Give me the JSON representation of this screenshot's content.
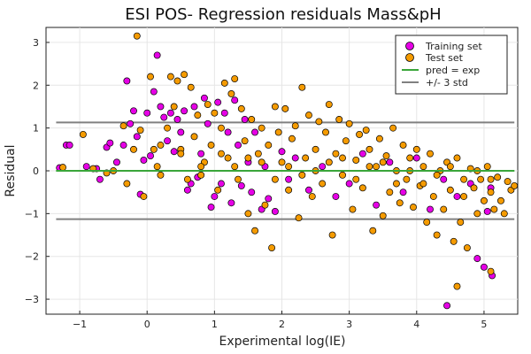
{
  "chart_data": {
    "type": "scatter",
    "title": "ESI POS- Regression residuals Mass&pH",
    "xlabel": "Experimental log(IE)",
    "ylabel": "Residual",
    "xlim": [
      -1.5,
      5.5
    ],
    "ylim": [
      -3.35,
      3.35
    ],
    "xticks": [
      "−1",
      "0",
      "1",
      "2",
      "3",
      "4",
      "5"
    ],
    "yticks": [
      "−3",
      "−2",
      "−1",
      "0",
      "1",
      "2",
      "3"
    ],
    "grid": true,
    "legend_position": "top-right",
    "series": [
      {
        "name": "Training set",
        "color": "#e600e6",
        "marker": "circle",
        "points": [
          [
            -1.3,
            0.07
          ],
          [
            -1.2,
            0.6
          ],
          [
            -1.15,
            0.6
          ],
          [
            -0.9,
            0.1
          ],
          [
            -0.75,
            0.05
          ],
          [
            -0.7,
            -0.2
          ],
          [
            -0.6,
            0.55
          ],
          [
            -0.55,
            0.65
          ],
          [
            -0.45,
            0.2
          ],
          [
            -0.35,
            0.6
          ],
          [
            -0.3,
            2.1
          ],
          [
            -0.25,
            1.1
          ],
          [
            -0.2,
            1.4
          ],
          [
            -0.15,
            0.8
          ],
          [
            -0.1,
            -0.55
          ],
          [
            -0.05,
            0.25
          ],
          [
            0.0,
            1.35
          ],
          [
            0.05,
            0.35
          ],
          [
            0.1,
            1.85
          ],
          [
            0.15,
            2.7
          ],
          [
            0.2,
            1.5
          ],
          [
            0.25,
            1.25
          ],
          [
            0.3,
            0.7
          ],
          [
            0.35,
            1.35
          ],
          [
            0.4,
            0.45
          ],
          [
            0.45,
            1.2
          ],
          [
            0.5,
            0.9
          ],
          [
            0.55,
            1.4
          ],
          [
            0.6,
            -0.45
          ],
          [
            0.65,
            -0.3
          ],
          [
            0.7,
            1.5
          ],
          [
            0.75,
            -0.15
          ],
          [
            0.8,
            0.4
          ],
          [
            0.85,
            1.7
          ],
          [
            0.9,
            1.1
          ],
          [
            0.95,
            -0.85
          ],
          [
            1.0,
            -0.6
          ],
          [
            1.05,
            1.6
          ],
          [
            1.1,
            -0.3
          ],
          [
            1.15,
            1.35
          ],
          [
            1.2,
            0.9
          ],
          [
            1.25,
            -0.75
          ],
          [
            1.3,
            1.65
          ],
          [
            1.35,
            0.6
          ],
          [
            1.4,
            -0.35
          ],
          [
            1.45,
            1.2
          ],
          [
            1.5,
            0.2
          ],
          [
            1.55,
            -0.5
          ],
          [
            1.6,
            0.9
          ],
          [
            1.7,
            -0.9
          ],
          [
            1.75,
            0.1
          ],
          [
            1.8,
            -0.65
          ],
          [
            1.9,
            -0.95
          ],
          [
            2.0,
            0.45
          ],
          [
            2.1,
            -0.2
          ],
          [
            2.2,
            0.3
          ],
          [
            2.4,
            -0.45
          ],
          [
            2.6,
            0.1
          ],
          [
            2.8,
            -0.6
          ],
          [
            3.0,
            -0.3
          ],
          [
            3.2,
            0.4
          ],
          [
            3.4,
            -0.8
          ],
          [
            3.6,
            0.2
          ],
          [
            3.8,
            -0.5
          ],
          [
            4.0,
            0.3
          ],
          [
            4.2,
            -0.9
          ],
          [
            4.4,
            -0.2
          ],
          [
            4.45,
            -3.15
          ],
          [
            4.6,
            -0.6
          ],
          [
            4.8,
            -0.3
          ],
          [
            4.9,
            -2.05
          ],
          [
            5.0,
            -2.25
          ],
          [
            5.05,
            -0.95
          ],
          [
            5.1,
            -0.4
          ],
          [
            5.12,
            -2.45
          ]
        ]
      },
      {
        "name": "Test set",
        "color": "#f59b00",
        "marker": "circle",
        "points": [
          [
            -1.25,
            0.08
          ],
          [
            -0.95,
            0.85
          ],
          [
            -0.8,
            0.05
          ],
          [
            -0.6,
            -0.05
          ],
          [
            -0.5,
            0.0
          ],
          [
            -0.35,
            1.05
          ],
          [
            -0.3,
            -0.3
          ],
          [
            -0.2,
            0.5
          ],
          [
            -0.15,
            3.15
          ],
          [
            -0.1,
            0.95
          ],
          [
            -0.05,
            -0.6
          ],
          [
            0.05,
            2.2
          ],
          [
            0.1,
            0.5
          ],
          [
            0.15,
            0.1
          ],
          [
            0.2,
            0.6
          ],
          [
            0.3,
            1.0
          ],
          [
            0.35,
            2.2
          ],
          [
            0.4,
            1.5
          ],
          [
            0.45,
            2.1
          ],
          [
            0.5,
            0.5
          ],
          [
            0.55,
            2.25
          ],
          [
            0.6,
            -0.2
          ],
          [
            0.65,
            1.95
          ],
          [
            0.7,
            0.8
          ],
          [
            0.75,
            1.3
          ],
          [
            0.8,
            -0.1
          ],
          [
            0.85,
            0.2
          ],
          [
            0.9,
            1.55
          ],
          [
            0.95,
            0.6
          ],
          [
            1.0,
            1.35
          ],
          [
            1.05,
            -0.45
          ],
          [
            1.1,
            1.0
          ],
          [
            1.15,
            2.05
          ],
          [
            1.2,
            0.3
          ],
          [
            1.25,
            1.8
          ],
          [
            1.3,
            2.15
          ],
          [
            1.35,
            -0.2
          ],
          [
            1.4,
            1.45
          ],
          [
            1.45,
            0.7
          ],
          [
            1.5,
            -1.0
          ],
          [
            1.55,
            1.2
          ],
          [
            1.6,
            -1.4
          ],
          [
            1.65,
            0.4
          ],
          [
            1.7,
            1.0
          ],
          [
            1.75,
            -0.8
          ],
          [
            1.8,
            0.6
          ],
          [
            1.85,
            -1.8
          ],
          [
            1.9,
            1.5
          ],
          [
            1.95,
            0.9
          ],
          [
            2.0,
            0.2
          ],
          [
            2.05,
            1.45
          ],
          [
            2.1,
            -0.45
          ],
          [
            2.15,
            0.75
          ],
          [
            2.2,
            1.05
          ],
          [
            2.25,
            -1.1
          ],
          [
            2.3,
            1.95
          ],
          [
            2.35,
            0.3
          ],
          [
            2.4,
            1.3
          ],
          [
            2.45,
            -0.6
          ],
          [
            2.5,
            0.5
          ],
          [
            2.55,
            1.15
          ],
          [
            2.6,
            -0.3
          ],
          [
            2.65,
            0.9
          ],
          [
            2.7,
            1.55
          ],
          [
            2.75,
            -1.5
          ],
          [
            2.8,
            0.4
          ],
          [
            2.85,
            1.2
          ],
          [
            2.9,
            -0.1
          ],
          [
            2.95,
            0.7
          ],
          [
            3.0,
            1.1
          ],
          [
            3.05,
            -0.9
          ],
          [
            3.1,
            0.25
          ],
          [
            3.15,
            0.85
          ],
          [
            3.2,
            -0.4
          ],
          [
            3.25,
            0.95
          ],
          [
            3.3,
            0.5
          ],
          [
            3.35,
            -1.4
          ],
          [
            3.4,
            0.1
          ],
          [
            3.45,
            0.75
          ],
          [
            3.5,
            -1.05
          ],
          [
            3.55,
            0.35
          ],
          [
            3.6,
            -0.5
          ],
          [
            3.65,
            1.0
          ],
          [
            3.7,
            0.0
          ],
          [
            3.75,
            -0.75
          ],
          [
            3.8,
            0.6
          ],
          [
            3.85,
            -0.2
          ],
          [
            3.9,
            0.3
          ],
          [
            3.95,
            -0.85
          ],
          [
            4.0,
            0.5
          ],
          [
            4.05,
            -0.35
          ],
          [
            4.1,
            0.1
          ],
          [
            4.15,
            -1.2
          ],
          [
            4.2,
            0.4
          ],
          [
            4.25,
            -0.6
          ],
          [
            4.3,
            -1.5
          ],
          [
            4.35,
            0.0
          ],
          [
            4.4,
            -0.9
          ],
          [
            4.45,
            0.2
          ],
          [
            4.5,
            -0.45
          ],
          [
            4.55,
            -1.65
          ],
          [
            4.6,
            0.3
          ],
          [
            4.65,
            -1.2
          ],
          [
            4.7,
            -0.6
          ],
          [
            4.75,
            -1.8
          ],
          [
            4.8,
            0.05
          ],
          [
            4.85,
            -0.4
          ],
          [
            4.9,
            -1.0
          ],
          [
            4.95,
            -0.2
          ],
          [
            5.0,
            -0.7
          ],
          [
            5.05,
            0.1
          ],
          [
            5.1,
            -0.5
          ],
          [
            5.15,
            -0.9
          ],
          [
            5.2,
            -0.15
          ],
          [
            5.25,
            -0.7
          ],
          [
            5.3,
            -1.0
          ],
          [
            5.35,
            -0.25
          ],
          [
            5.4,
            -0.45
          ],
          [
            5.45,
            -0.35
          ],
          [
            0.2,
            -0.1
          ],
          [
            0.5,
            0.4
          ],
          [
            0.8,
            0.1
          ],
          [
            1.1,
            0.4
          ],
          [
            1.3,
            0.1
          ],
          [
            1.5,
            0.3
          ],
          [
            1.7,
            0.2
          ],
          [
            1.9,
            -0.2
          ],
          [
            2.1,
            0.1
          ],
          [
            2.3,
            -0.1
          ],
          [
            2.5,
            0.0
          ],
          [
            2.7,
            0.2
          ],
          [
            2.9,
            0.3
          ],
          [
            3.1,
            -0.2
          ],
          [
            3.3,
            0.1
          ],
          [
            3.5,
            0.2
          ],
          [
            3.7,
            -0.3
          ],
          [
            3.9,
            0.0
          ],
          [
            4.1,
            -0.3
          ],
          [
            4.3,
            -0.1
          ],
          [
            4.5,
            0.1
          ],
          [
            4.7,
            -0.2
          ],
          [
            4.9,
            0.0
          ],
          [
            5.1,
            -0.2
          ],
          [
            4.6,
            -2.7
          ],
          [
            5.1,
            -2.35
          ]
        ]
      }
    ],
    "lines": [
      {
        "name": "pred = exp",
        "color": "#3aa63a",
        "y": 0.0,
        "x_range": [
          -1.35,
          5.45
        ]
      },
      {
        "name": "+/- 3 std",
        "color": "#808080",
        "y": 1.13,
        "x_range": [
          -1.35,
          5.45
        ]
      },
      {
        "name": "",
        "color": "#808080",
        "y": -1.13,
        "x_range": [
          -1.35,
          5.45
        ]
      }
    ]
  }
}
